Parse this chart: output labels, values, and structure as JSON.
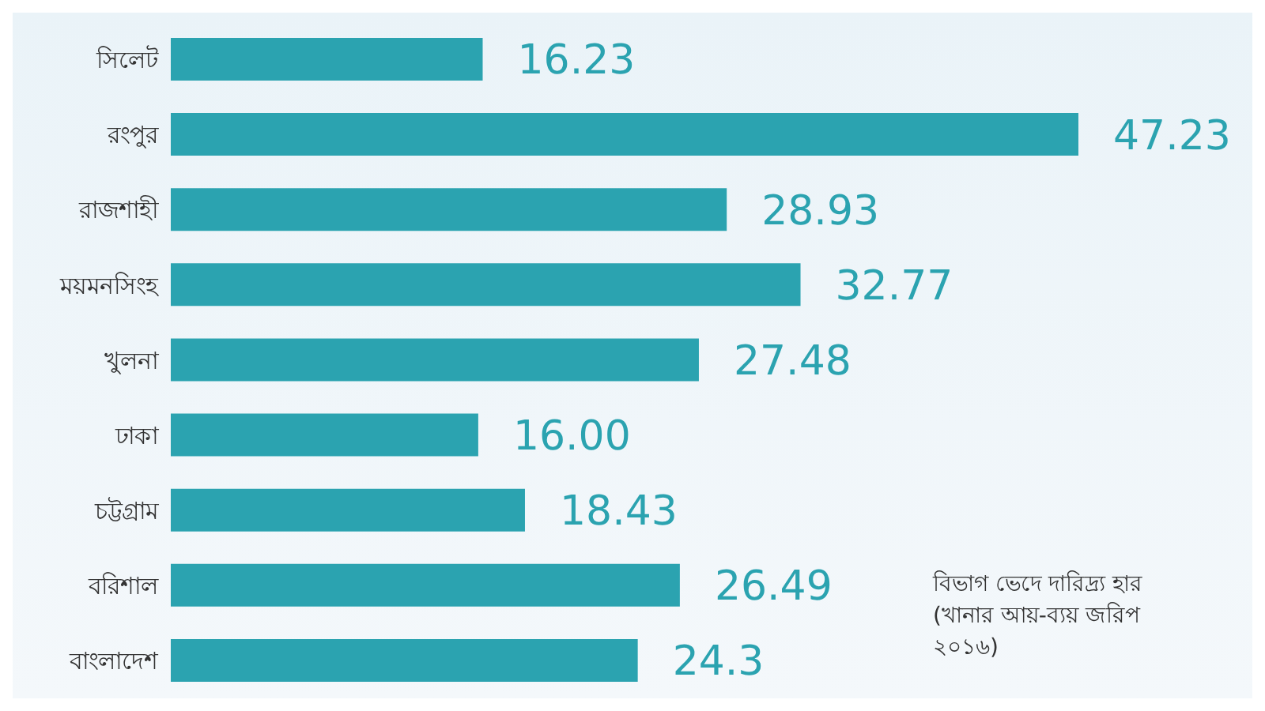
{
  "chart_data": {
    "type": "bar",
    "orientation": "horizontal",
    "categories": [
      "সিলেট",
      "রংপুর",
      "রাজশাহী",
      "ময়মনসিংহ",
      "খুলনা",
      "ঢাকা",
      "চট্টগ্রাম",
      "বরিশাল",
      "বাংলাদেশ"
    ],
    "values": [
      16.23,
      47.23,
      28.93,
      32.77,
      27.48,
      16.0,
      18.43,
      26.49,
      24.3
    ],
    "value_labels": [
      "16.23",
      "47.23",
      "28.93",
      "32.77",
      "27.48",
      "16.00",
      "18.43",
      "26.49",
      "24.3"
    ],
    "color": "#2ba3b0",
    "annotations": [
      "বিভাগ ভেদে দারিদ্র্য হার (খানার আয়-ব্যয় জরিপ ২০১৬)"
    ]
  }
}
